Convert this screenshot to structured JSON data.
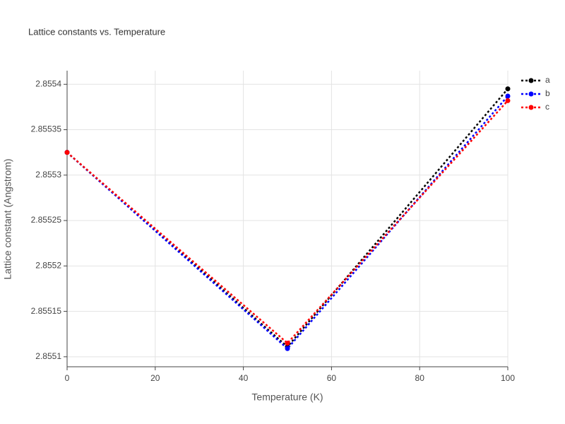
{
  "chart_data": {
    "type": "line",
    "title": "Lattice constants vs. Temperature",
    "x_label": "Temperature (K)",
    "y_label": "Lattice constant (Angstrom)",
    "x": [
      0,
      50,
      100
    ],
    "series": [
      {
        "name": "a",
        "color": "#000000",
        "values": [
          2.855325,
          2.855111,
          2.855395
        ]
      },
      {
        "name": "b",
        "color": "#0000ff",
        "values": [
          2.855325,
          2.855109,
          2.855387
        ]
      },
      {
        "name": "c",
        "color": "#ff0000",
        "values": [
          2.855325,
          2.855115,
          2.855382
        ]
      }
    ],
    "xlim": [
      0,
      100
    ],
    "xticks": [
      0,
      20,
      40,
      60,
      80,
      100
    ],
    "ylim": [
      2.855089,
      2.855415
    ],
    "yticks": [
      2.8551,
      2.85515,
      2.8552,
      2.85525,
      2.8553,
      2.85535,
      2.8554
    ],
    "grid": true,
    "legend": "right"
  }
}
